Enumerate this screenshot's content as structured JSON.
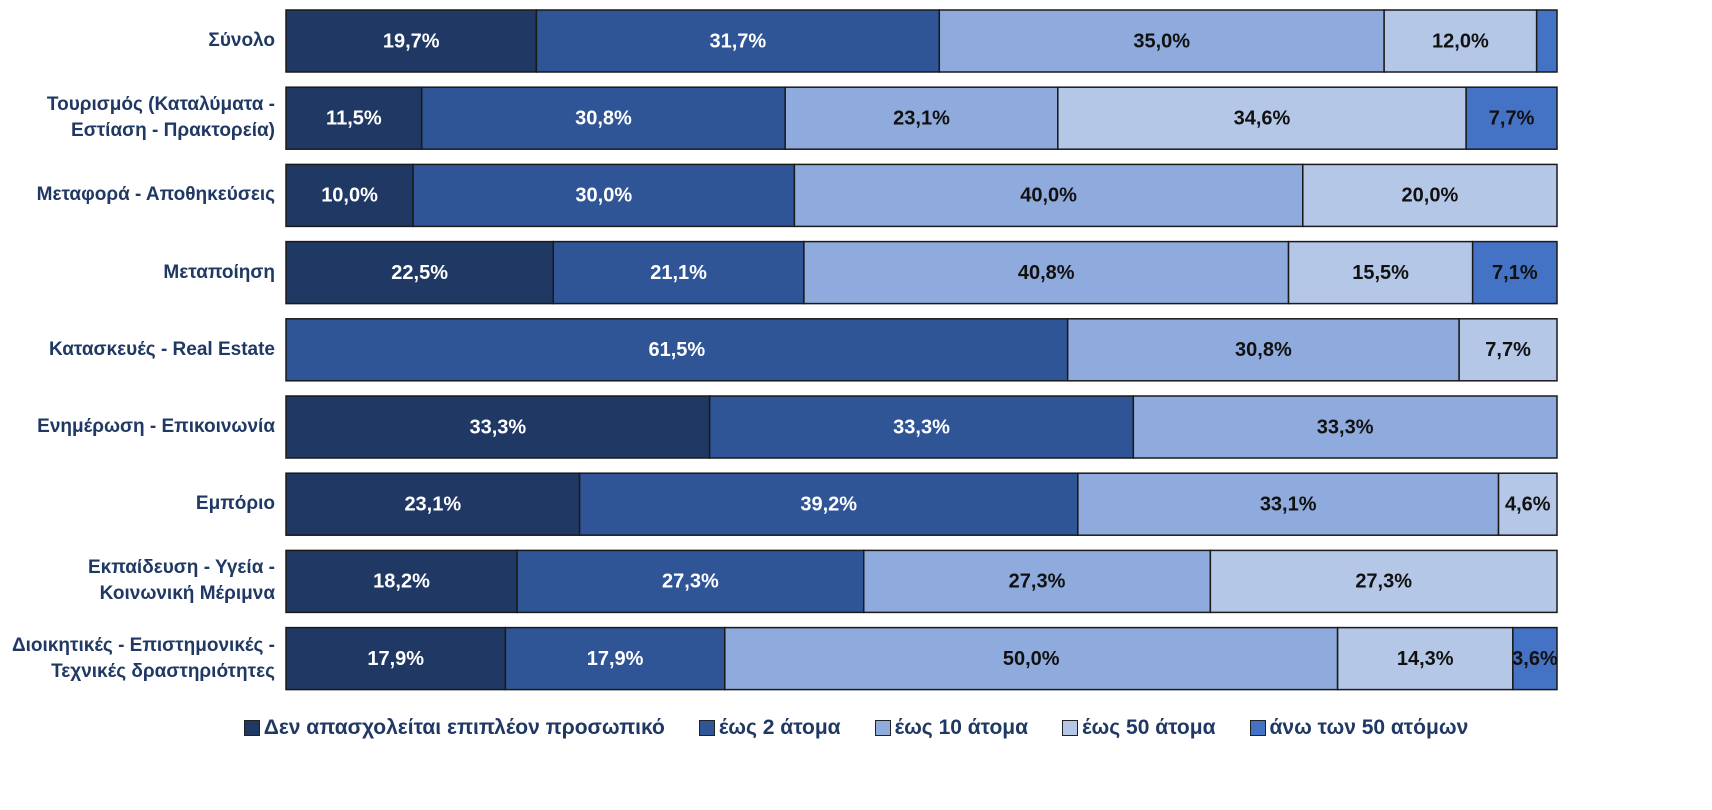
{
  "chart_data": {
    "type": "stacked_bar_horizontal",
    "categories": [
      "Σύνολο",
      "Τουρισμός (Καταλύματα - Εστίαση - Πρακτορεία)",
      "Μεταφορά - Αποθηκεύσεις",
      "Μεταποίηση",
      "Κατασκευές - Real Estate",
      "Ενημέρωση - Επικοινωνία",
      "Εμπόριο",
      "Εκπαίδευση - Υγεία - Κοινωνική Μέριμνα",
      "Διοικητικές - Επιστημονικές - Τεχνικές δραστηριότητες"
    ],
    "series": [
      {
        "name": "Δεν απασχολείται επιπλέον προσωπικό",
        "color": "#203864",
        "label_color": "#ffffff",
        "values": [
          19.7,
          11.5,
          10.0,
          22.5,
          0,
          33.3,
          23.1,
          18.2,
          17.9
        ],
        "value_labels": [
          "19,7%",
          "11,5%",
          "10,0%",
          "22,5%",
          null,
          "33,3%",
          "23,1%",
          "18,2%",
          "17,9%"
        ]
      },
      {
        "name": "έως 2 άτομα",
        "color": "#2f5597",
        "label_color": "#ffffff",
        "values": [
          31.7,
          30.8,
          30.0,
          21.1,
          61.5,
          33.3,
          39.2,
          27.3,
          17.9
        ],
        "value_labels": [
          "31,7%",
          "30,8%",
          "30,0%",
          "21,1%",
          "61,5%",
          "33,3%",
          "39,2%",
          "27,3%",
          "17,9%"
        ]
      },
      {
        "name": "έως 10 άτομα",
        "color": "#8faadc",
        "label_color": "#111111",
        "values": [
          35.0,
          23.1,
          40.0,
          40.8,
          30.8,
          33.3,
          33.1,
          27.3,
          50.0
        ],
        "value_labels": [
          "35,0%",
          "23,1%",
          "40,0%",
          "40,8%",
          "30,8%",
          "33,3%",
          "33,1%",
          "27,3%",
          "50,0%"
        ]
      },
      {
        "name": "έως 50 άτομα",
        "color": "#b4c7e7",
        "label_color": "#111111",
        "values": [
          12.0,
          34.6,
          20.0,
          15.5,
          7.7,
          0,
          4.6,
          27.3,
          14.3
        ],
        "value_labels": [
          "12,0%",
          "34,6%",
          "20,0%",
          "15,5%",
          "7,7%",
          null,
          "4,6%",
          "27,3%",
          "14,3%"
        ]
      },
      {
        "name": "άνω των 50 ατόμων",
        "color": "#4472c4",
        "label_color": "#111111",
        "values": [
          1.6,
          7.7,
          0,
          7.1,
          0,
          0,
          0,
          0,
          3.6
        ],
        "value_labels": [
          null,
          "7,7%",
          null,
          "7,1%",
          null,
          null,
          null,
          null,
          "3,6%"
        ]
      }
    ]
  }
}
